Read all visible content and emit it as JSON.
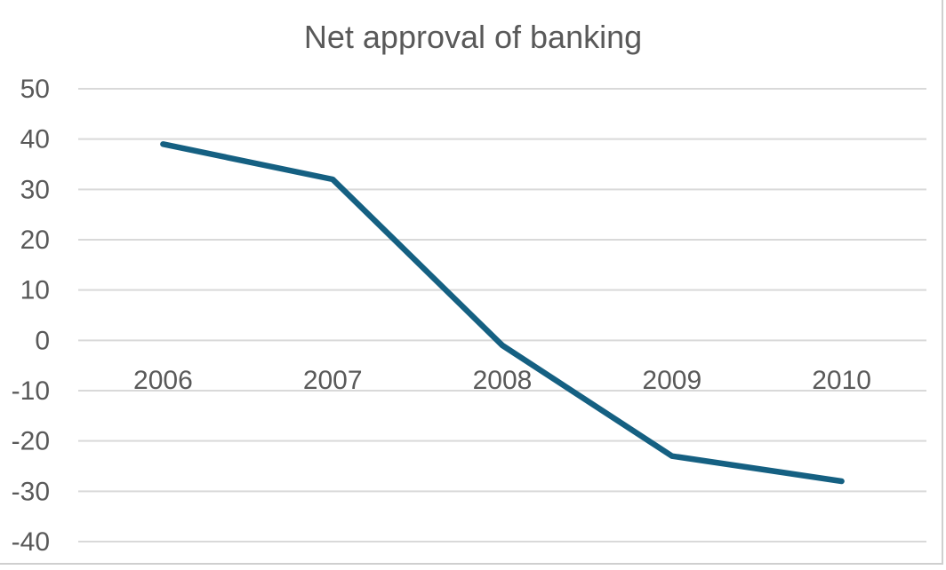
{
  "chart_data": {
    "type": "line",
    "title": "Net approval of banking",
    "categories": [
      "2006",
      "2007",
      "2008",
      "2009",
      "2010"
    ],
    "values": [
      39,
      32,
      -1,
      -23,
      -28
    ],
    "xlabel": "",
    "ylabel": "",
    "ylim": [
      -40,
      50
    ],
    "y_ticks": [
      50,
      40,
      30,
      20,
      10,
      0,
      -10,
      -20,
      -30,
      -40
    ],
    "grid": true,
    "legend": "none",
    "colors": {
      "line": "#156082",
      "gridline": "#D9D9D9",
      "tick_label": "#595959",
      "title": "#595959",
      "border": "#CFCFCF",
      "background": "#FFFFFF"
    }
  }
}
